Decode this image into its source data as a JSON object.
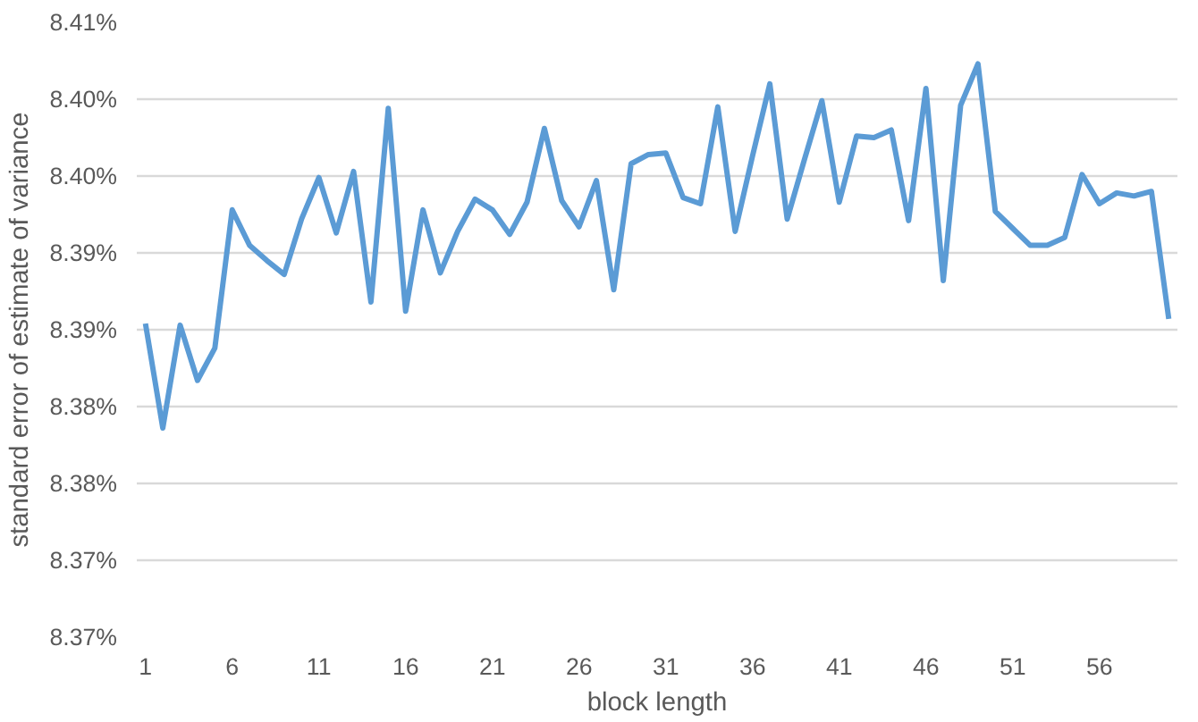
{
  "chart_data": {
    "type": "line",
    "xlabel": "block length",
    "ylabel": "standard error of estimate of variance",
    "x": [
      1,
      2,
      3,
      4,
      5,
      6,
      7,
      8,
      9,
      10,
      11,
      12,
      13,
      14,
      15,
      16,
      17,
      18,
      19,
      20,
      21,
      22,
      23,
      24,
      25,
      26,
      27,
      28,
      29,
      30,
      31,
      32,
      33,
      34,
      35,
      36,
      37,
      38,
      39,
      40,
      41,
      42,
      43,
      44,
      45,
      46,
      47,
      48,
      49,
      50,
      51,
      52,
      53,
      54,
      55,
      56,
      57,
      58,
      59,
      60
    ],
    "series": [
      {
        "color": "#5b9bd5",
        "values": [
          8.3904,
          8.3836,
          8.3903,
          8.3867,
          8.3888,
          8.3978,
          8.3955,
          8.3945,
          8.3936,
          8.3972,
          8.3999,
          8.3963,
          8.4003,
          8.3918,
          8.4044,
          8.3912,
          8.3978,
          8.3937,
          8.3964,
          8.3985,
          8.3978,
          8.3962,
          8.3983,
          8.4031,
          8.3984,
          8.3967,
          8.3997,
          8.3926,
          8.4008,
          8.4014,
          8.4015,
          8.3986,
          8.3982,
          8.4045,
          8.3964,
          8.4013,
          8.406,
          8.3972,
          8.4011,
          8.4049,
          8.3983,
          8.4026,
          8.4025,
          8.403,
          8.3971,
          8.4057,
          8.3932,
          8.4046,
          8.4073,
          8.3977,
          8.3966,
          8.3955,
          8.3955,
          8.396,
          8.4001,
          8.3982,
          8.3989,
          8.3987,
          8.399,
          8.3907
        ]
      }
    ],
    "xlim": [
      0.5,
      60.5
    ],
    "xticks": [
      1,
      6,
      11,
      16,
      21,
      26,
      31,
      36,
      41,
      46,
      51,
      56
    ],
    "ylim": [
      8.37,
      8.41
    ],
    "yticks": [
      {
        "value": 8.37,
        "label": "8.37%"
      },
      {
        "value": 8.375,
        "label": "8.37%"
      },
      {
        "value": 8.38,
        "label": "8.38%"
      },
      {
        "value": 8.385,
        "label": "8.38%"
      },
      {
        "value": 8.39,
        "label": "8.39%"
      },
      {
        "value": 8.395,
        "label": "8.39%"
      },
      {
        "value": 8.4,
        "label": "8.40%"
      },
      {
        "value": 8.405,
        "label": "8.40%"
      },
      {
        "value": 8.41,
        "label": "8.41%"
      }
    ],
    "grid": "y",
    "marker": "none",
    "line_style": "solid"
  }
}
